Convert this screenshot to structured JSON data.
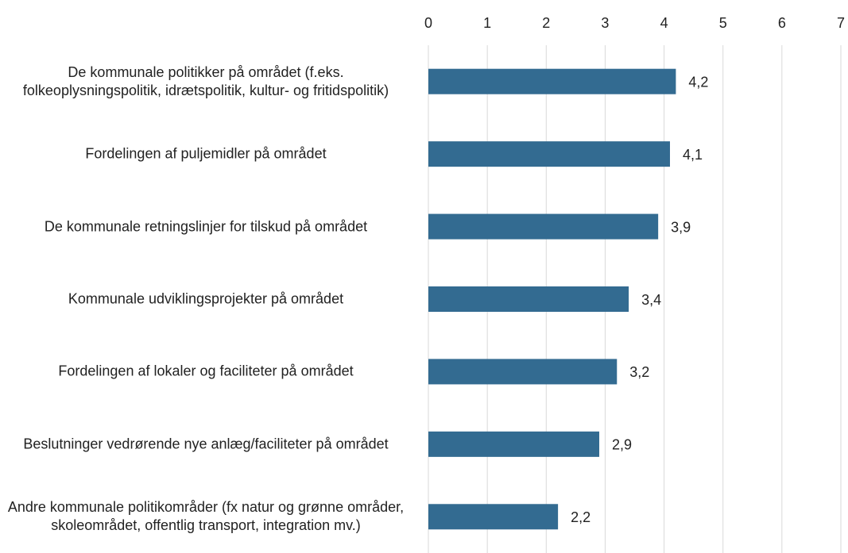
{
  "chart_data": {
    "type": "bar",
    "orientation": "horizontal",
    "categories": [
      "De kommunale politikker på området (f.eks. folkeoplysningspolitik, idrætspolitik, kultur- og fritidspolitik)",
      "Fordelingen af puljemidler på området",
      "De kommunale retningslinjer for tilskud på området",
      "Kommunale udviklingsprojekter på området",
      "Fordelingen af lokaler og faciliteter på området",
      "Beslutninger vedrørende nye anlæg/faciliteter på området",
      "Andre kommunale politikområder (fx natur og grønne områder, skoleområdet, offentlig transport, integration mv.)"
    ],
    "values": [
      4.2,
      4.1,
      3.9,
      3.4,
      3.2,
      2.9,
      2.2
    ],
    "value_labels": [
      "4,2",
      "4,1",
      "3,9",
      "3,4",
      "3,2",
      "2,9",
      "2,2"
    ],
    "color": "#336b91",
    "xlim": [
      0,
      7
    ],
    "xticks": [
      0,
      1,
      2,
      3,
      4,
      5,
      6,
      7
    ],
    "grid": true
  }
}
